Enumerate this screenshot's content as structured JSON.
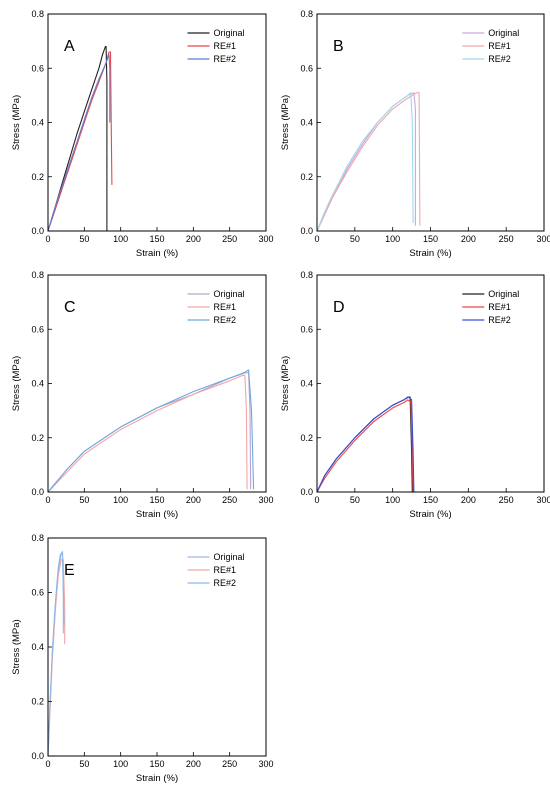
{
  "chart_data": [
    {
      "type": "line",
      "panel": "A",
      "xlabel": "Strain (%)",
      "ylabel": "Stress (MPa)",
      "xlim": [
        0,
        300
      ],
      "ylim": [
        0,
        0.8
      ],
      "xticks": [
        0,
        50,
        100,
        150,
        200,
        250,
        300
      ],
      "yticks": [
        0.0,
        0.2,
        0.4,
        0.6,
        0.8
      ],
      "legend": "top-right",
      "series": [
        {
          "name": "Original",
          "color": "#222222",
          "x": [
            0,
            10,
            20,
            30,
            40,
            50,
            60,
            70,
            75,
            79,
            80,
            81,
            81
          ],
          "y": [
            0,
            0.09,
            0.18,
            0.27,
            0.36,
            0.44,
            0.52,
            0.6,
            0.65,
            0.68,
            0.68,
            0.55,
            0
          ]
        },
        {
          "name": "RE#1",
          "color": "#e8474a",
          "x": [
            0,
            10,
            20,
            30,
            40,
            50,
            60,
            70,
            80,
            84,
            86,
            87,
            88
          ],
          "y": [
            0,
            0.08,
            0.16,
            0.24,
            0.32,
            0.4,
            0.48,
            0.55,
            0.62,
            0.66,
            0.66,
            0.4,
            0.17
          ]
        },
        {
          "name": "RE#2",
          "color": "#5b7fd6",
          "x": [
            0,
            10,
            20,
            30,
            40,
            50,
            60,
            70,
            80,
            84,
            85,
            85
          ],
          "y": [
            0,
            0.09,
            0.17,
            0.25,
            0.33,
            0.41,
            0.49,
            0.56,
            0.62,
            0.65,
            0.6,
            0.4
          ]
        }
      ]
    },
    {
      "type": "line",
      "panel": "B",
      "xlabel": "Strain (%)",
      "ylabel": "Stress (MPa)",
      "xlim": [
        0,
        300
      ],
      "ylim": [
        0,
        0.8
      ],
      "xticks": [
        0,
        50,
        100,
        150,
        200,
        250,
        300
      ],
      "yticks": [
        0.0,
        0.2,
        0.4,
        0.6,
        0.8
      ],
      "legend": "top-right",
      "series": [
        {
          "name": "Original",
          "color": "#c9a7e0",
          "x": [
            0,
            10,
            20,
            40,
            60,
            80,
            100,
            120,
            128,
            130,
            130
          ],
          "y": [
            0,
            0.06,
            0.12,
            0.23,
            0.32,
            0.4,
            0.46,
            0.5,
            0.51,
            0.45,
            0.02
          ]
        },
        {
          "name": "RE#1",
          "color": "#f2a6a6",
          "x": [
            0,
            10,
            20,
            40,
            60,
            80,
            100,
            120,
            132,
            135,
            136
          ],
          "y": [
            0,
            0.06,
            0.12,
            0.22,
            0.31,
            0.39,
            0.45,
            0.49,
            0.51,
            0.51,
            0.02
          ]
        },
        {
          "name": "RE#2",
          "color": "#9fd8f0",
          "x": [
            0,
            10,
            20,
            40,
            60,
            80,
            100,
            120,
            124,
            126,
            127
          ],
          "y": [
            0,
            0.07,
            0.13,
            0.24,
            0.33,
            0.4,
            0.46,
            0.5,
            0.51,
            0.4,
            0.03
          ]
        }
      ]
    },
    {
      "type": "line",
      "panel": "C",
      "xlabel": "Strain (%)",
      "ylabel": "Stress (MPa)",
      "xlim": [
        0,
        300
      ],
      "ylim": [
        0,
        0.8
      ],
      "xticks": [
        0,
        50,
        100,
        150,
        200,
        250,
        300
      ],
      "yticks": [
        0.0,
        0.2,
        0.4,
        0.6,
        0.8
      ],
      "legend": "top-right",
      "series": [
        {
          "name": "Original",
          "color": "#b9a2d6",
          "x": [
            0,
            25,
            50,
            100,
            150,
            200,
            250,
            272,
            276,
            278,
            279
          ],
          "y": [
            0,
            0.08,
            0.15,
            0.24,
            0.31,
            0.36,
            0.42,
            0.44,
            0.44,
            0.3,
            0.01
          ]
        },
        {
          "name": "RE#1",
          "color": "#f2a6a6",
          "x": [
            0,
            25,
            50,
            100,
            150,
            200,
            250,
            268,
            271,
            273,
            274
          ],
          "y": [
            0,
            0.07,
            0.14,
            0.23,
            0.3,
            0.36,
            0.41,
            0.43,
            0.43,
            0.3,
            0.01
          ]
        },
        {
          "name": "RE#2",
          "color": "#6fa8dc",
          "x": [
            0,
            25,
            50,
            100,
            150,
            200,
            250,
            270,
            276,
            280,
            283
          ],
          "y": [
            0,
            0.08,
            0.15,
            0.24,
            0.31,
            0.37,
            0.42,
            0.44,
            0.45,
            0.3,
            0.01
          ]
        }
      ]
    },
    {
      "type": "line",
      "panel": "D",
      "xlabel": "Strain (%)",
      "ylabel": "Stress (MPa)",
      "xlim": [
        0,
        300
      ],
      "ylim": [
        0,
        0.8
      ],
      "xticks": [
        0,
        50,
        100,
        150,
        200,
        250,
        300
      ],
      "yticks": [
        0.0,
        0.2,
        0.4,
        0.6,
        0.8
      ],
      "legend": "top-right",
      "series": [
        {
          "name": "Original",
          "color": "#222222",
          "x": [
            0,
            10,
            25,
            50,
            75,
            100,
            115,
            120,
            123,
            125,
            126
          ],
          "y": [
            0,
            0.06,
            0.12,
            0.2,
            0.27,
            0.32,
            0.34,
            0.35,
            0.35,
            0.15,
            0.0
          ]
        },
        {
          "name": "RE#1",
          "color": "#e8474a",
          "x": [
            0,
            10,
            25,
            50,
            75,
            100,
            115,
            120,
            124,
            126,
            127
          ],
          "y": [
            0,
            0.05,
            0.11,
            0.19,
            0.26,
            0.31,
            0.33,
            0.34,
            0.33,
            0.15,
            0.0
          ]
        },
        {
          "name": "RE#2",
          "color": "#3a4fd6",
          "x": [
            0,
            10,
            25,
            50,
            75,
            100,
            115,
            121,
            125,
            127,
            128
          ],
          "y": [
            0,
            0.06,
            0.12,
            0.2,
            0.27,
            0.32,
            0.34,
            0.35,
            0.34,
            0.15,
            0.0
          ]
        }
      ]
    },
    {
      "type": "line",
      "panel": "E",
      "xlabel": "Strain (%)",
      "ylabel": "Stress (MPa)",
      "xlim": [
        0,
        300
      ],
      "ylim": [
        0,
        0.8
      ],
      "xticks": [
        0,
        50,
        100,
        150,
        200,
        250,
        300
      ],
      "yticks": [
        0.0,
        0.2,
        0.4,
        0.6,
        0.8
      ],
      "legend": "top-right",
      "series": [
        {
          "name": "Original",
          "color": "#9fb8e6",
          "x": [
            0,
            3,
            6,
            10,
            14,
            18,
            20,
            21,
            21
          ],
          "y": [
            0,
            0.2,
            0.38,
            0.55,
            0.68,
            0.74,
            0.74,
            0.6,
            0.45
          ]
        },
        {
          "name": "RE#1",
          "color": "#f2a6a6",
          "x": [
            0,
            3,
            6,
            10,
            14,
            18,
            21,
            23,
            23
          ],
          "y": [
            0,
            0.18,
            0.36,
            0.53,
            0.66,
            0.72,
            0.72,
            0.55,
            0.41
          ]
        },
        {
          "name": "RE#2",
          "color": "#8fb7e8",
          "x": [
            0,
            3,
            6,
            10,
            14,
            17,
            20,
            21,
            22
          ],
          "y": [
            0,
            0.21,
            0.39,
            0.56,
            0.69,
            0.74,
            0.75,
            0.62,
            0.48
          ]
        }
      ]
    }
  ]
}
